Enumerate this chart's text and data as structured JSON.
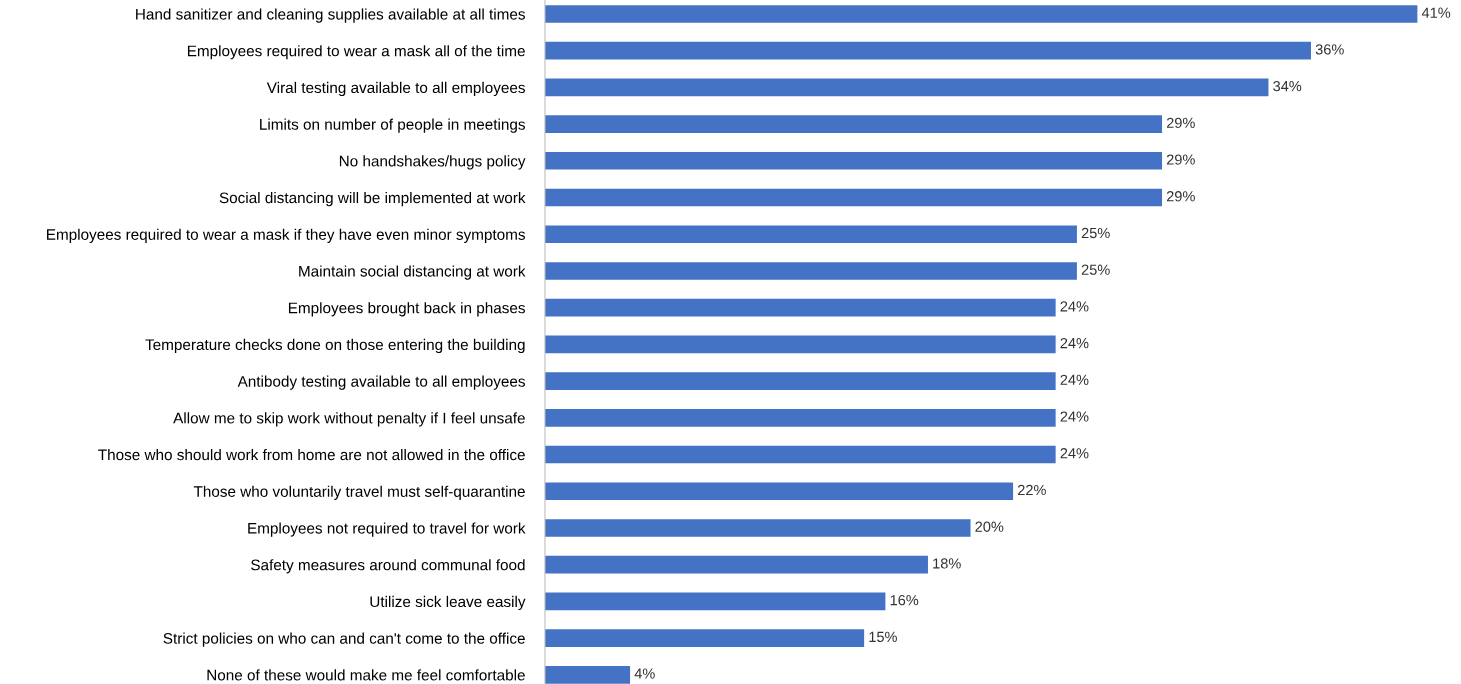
{
  "chart_data": {
    "type": "bar",
    "orientation": "horizontal",
    "grid": false,
    "legend": false,
    "categories": [
      "Hand sanitizer and cleaning supplies available at all times",
      "Employees required to wear a mask all of the time",
      "Viral testing available to all employees",
      "Limits on number of people in meetings",
      "No handshakes/hugs policy",
      "Social distancing will be implemented at work",
      "Employees required to wear a mask if they have even minor symptoms",
      "Maintain social distancing at work",
      "Employees brought back in phases",
      "Temperature checks done on those entering the building",
      "Antibody testing available to all employees",
      "Allow me to skip work without penalty if I feel unsafe",
      "Those who should work from home are not allowed in the office",
      "Those who voluntarily travel must self-quarantine",
      "Employees not required to travel for work",
      "Safety measures around communal food",
      "Utilize sick leave easily",
      "Strict policies on who can and can't come to the office",
      "None of these would make me feel comfortable"
    ],
    "values": [
      41,
      36,
      34,
      29,
      29,
      29,
      25,
      25,
      24,
      24,
      24,
      24,
      24,
      22,
      20,
      18,
      16,
      15,
      4
    ],
    "value_labels": [
      "41%",
      "36%",
      "34%",
      "29%",
      "29%",
      "29%",
      "25%",
      "25%",
      "24%",
      "24%",
      "24%",
      "24%",
      "24%",
      "22%",
      "20%",
      "18%",
      "16%",
      "15%",
      "4%"
    ],
    "color": "#4472c4"
  }
}
